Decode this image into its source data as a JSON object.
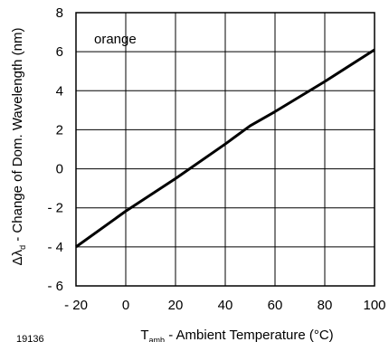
{
  "chart_data": {
    "type": "line",
    "legend_label": "orange",
    "x": [
      -20,
      0,
      20,
      40,
      50,
      60,
      80,
      100
    ],
    "series": [
      {
        "values": [
          -4.0,
          -2.17,
          -0.5,
          1.27,
          2.2,
          2.93,
          4.47,
          6.1
        ]
      }
    ],
    "xlim": [
      -20,
      100
    ],
    "ylim": [
      -6,
      8
    ],
    "x_ticks": [
      -20,
      0,
      20,
      40,
      60,
      80,
      100
    ],
    "y_ticks": [
      -6,
      -4,
      -2,
      0,
      2,
      4,
      6,
      8
    ],
    "x_tick_labels": [
      "- 20",
      "0",
      "20",
      "40",
      "60",
      "80",
      "100"
    ],
    "y_tick_labels": [
      "- 6",
      "- 4",
      "- 2",
      "0",
      "2",
      "4",
      "6",
      "8"
    ],
    "xlabel": {
      "main": "T",
      "sub": "amb",
      "rest": " - Ambient Temperature (°C)"
    },
    "ylabel": {
      "main": "Δλ",
      "sub": "d",
      "rest": " - Change of Dom. Wavelength (nm)"
    },
    "figure_id": "19136",
    "grid": true
  }
}
